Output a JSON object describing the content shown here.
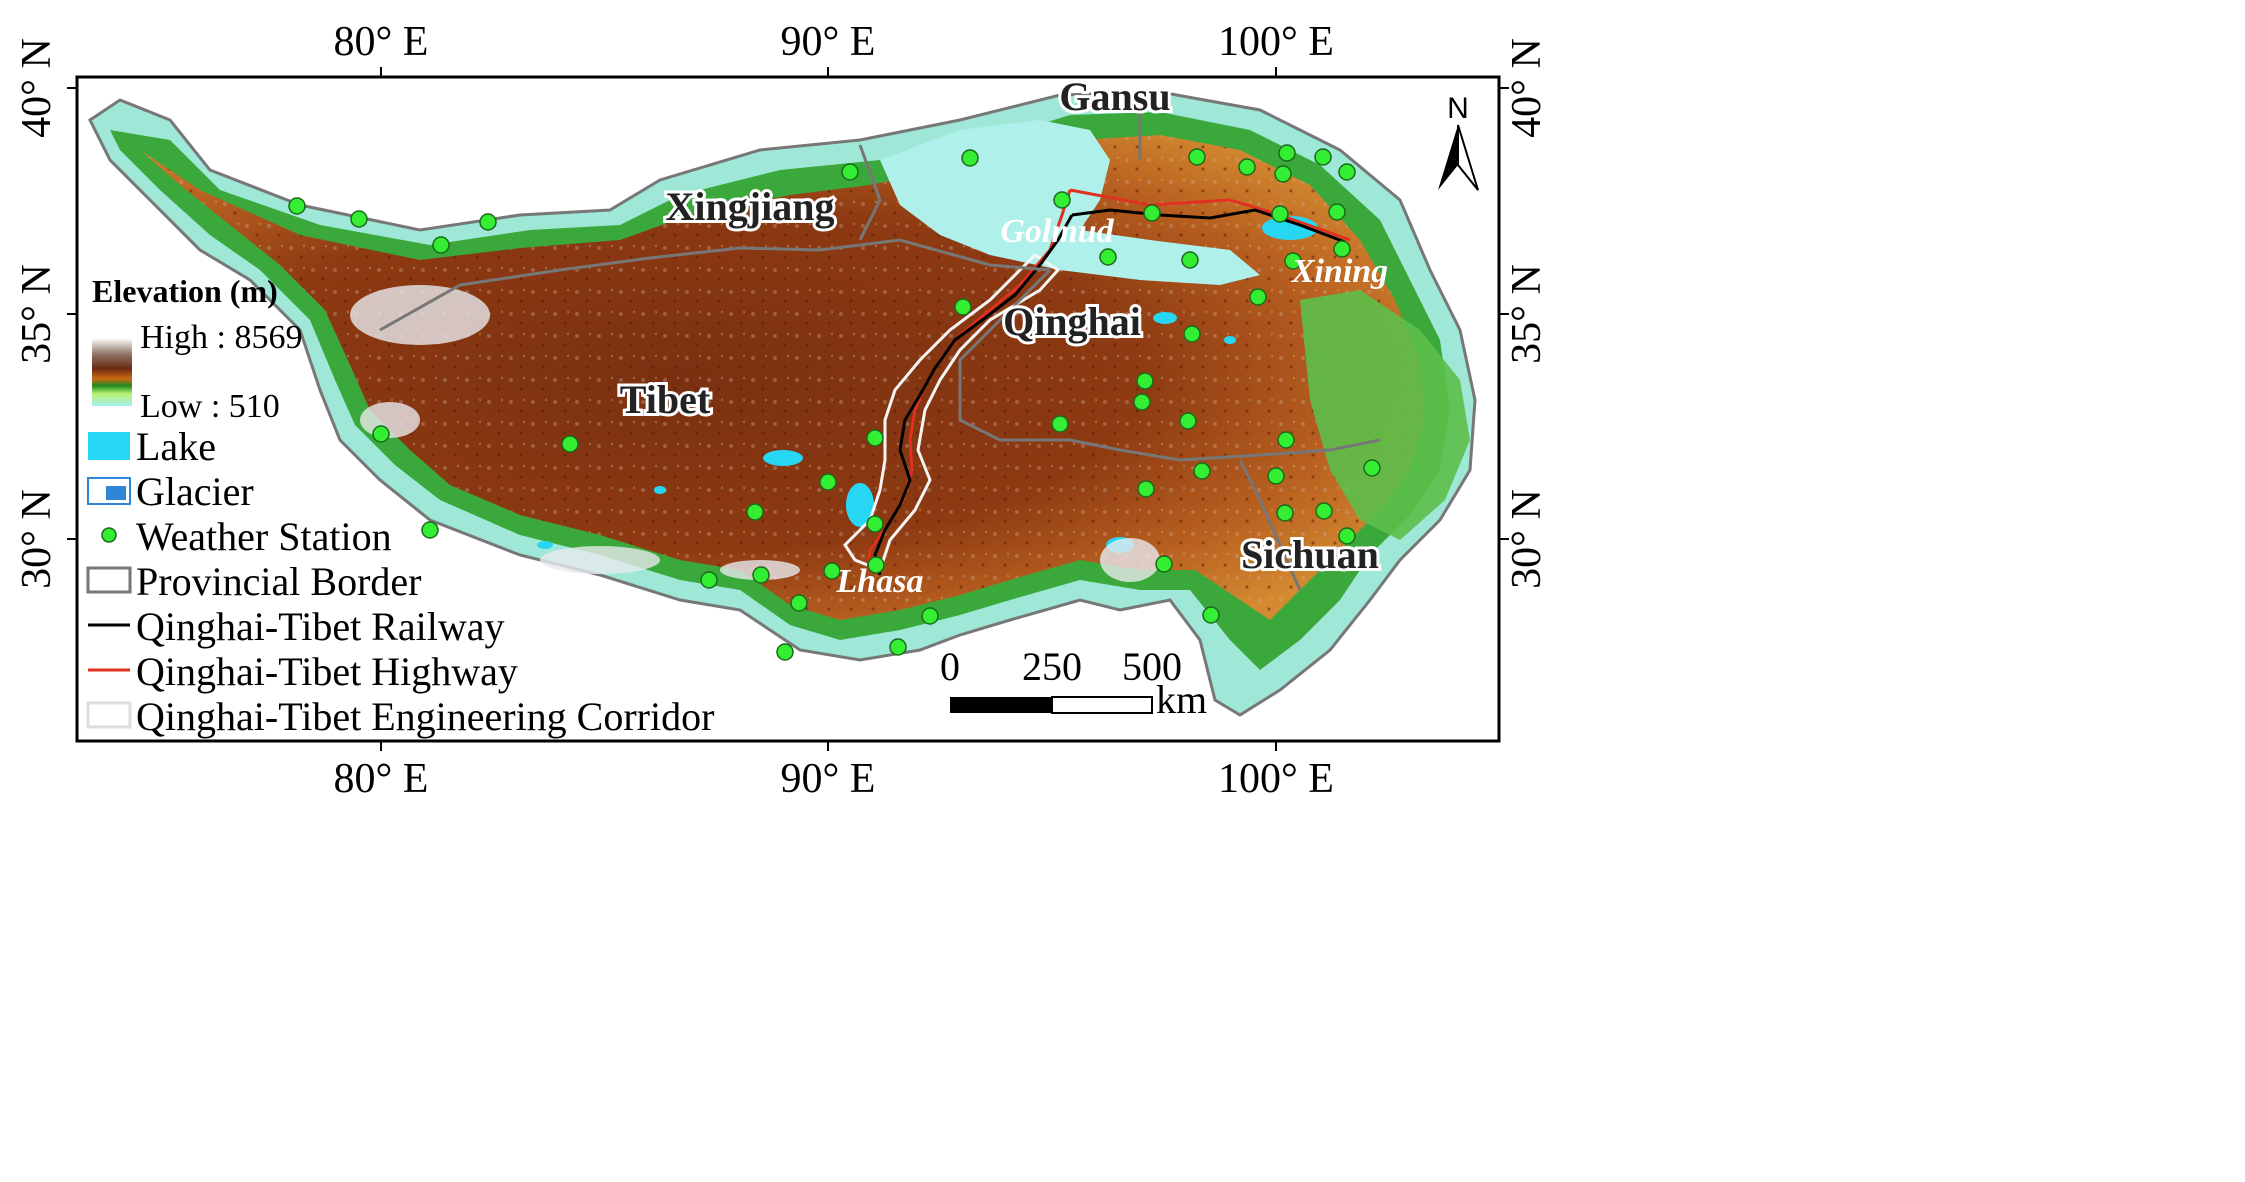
{
  "axes": {
    "top": [
      "80° E",
      "90° E",
      "100° E"
    ],
    "bottom": [
      "80° E",
      "90° E",
      "100° E"
    ],
    "left": [
      "40° N",
      "35° N",
      "30° N"
    ],
    "right": [
      "40° N",
      "35° N",
      "30° N"
    ]
  },
  "provinces": [
    "Gansu",
    "Xingjiang",
    "Qinghai",
    "Tibet",
    "Sichuan"
  ],
  "cities": [
    "Golmud",
    "Xining",
    "Lhasa"
  ],
  "north_arrow": "N",
  "legend": {
    "elevation_title": "Elevation (m)",
    "elevation_high": "High : 8569",
    "elevation_low": "Low : 510",
    "items": [
      {
        "label": "Lake",
        "icon": "lake-swatch",
        "color": "#27d6f2"
      },
      {
        "label": "Glacier",
        "icon": "glacier-swatch",
        "color": "#2f86d6"
      },
      {
        "label": "Weather Station",
        "icon": "green-dot",
        "color": "#33ee33"
      },
      {
        "label": "Provincial Border",
        "icon": "gray-box",
        "color": "#777777"
      },
      {
        "label": "Qinghai-Tibet Railway",
        "icon": "black-line",
        "color": "#000000"
      },
      {
        "label": "Qinghai-Tibet Highway",
        "icon": "red-line",
        "color": "#e03020"
      },
      {
        "label": "Qinghai-Tibet Engineering Corridor",
        "icon": "white-box",
        "color": "#e8e8e8"
      }
    ]
  },
  "scale_bar": {
    "ticks": [
      "0",
      "250",
      "500"
    ],
    "unit": "km"
  },
  "colors": {
    "elevation_high": "#8b2a10",
    "elevation_low": "#aef0e8",
    "station": "#33ee33",
    "railway": "#000000",
    "highway": "#e03020",
    "border": "#777777"
  }
}
